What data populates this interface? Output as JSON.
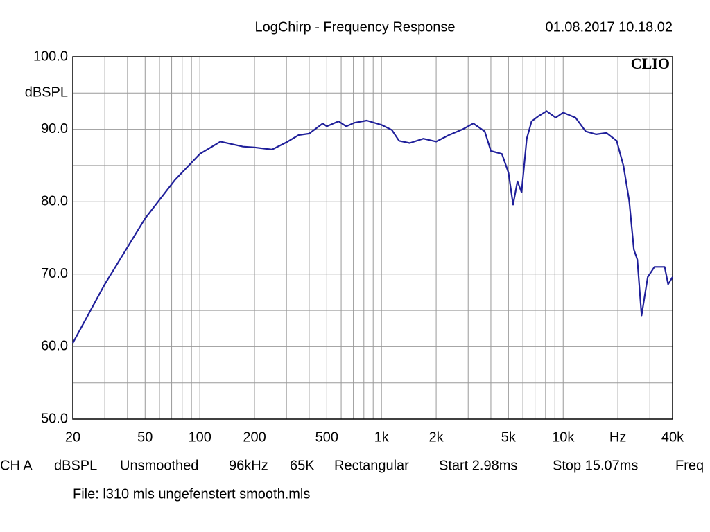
{
  "chart_data": {
    "type": "line",
    "title": "LogChirp - Frequency Response",
    "timestamp": "01.08.2017 10.18.02",
    "brand": "CLIO",
    "y_unit": "dBSPL",
    "log_x": true,
    "grid": true,
    "xlim": [
      20,
      40000
    ],
    "ylim": [
      50,
      100
    ],
    "xticks": [
      20,
      50,
      100,
      200,
      500,
      {
        "value": 1000,
        "label": "1k"
      },
      {
        "value": 2000,
        "label": "2k"
      },
      {
        "value": 5000,
        "label": "5k"
      },
      {
        "value": 10000,
        "label": "10k"
      },
      {
        "value": 20000,
        "label": "Hz"
      },
      {
        "value": 40000,
        "label": "40k"
      }
    ],
    "minor_xticks": [
      30,
      40,
      60,
      70,
      80,
      90,
      300,
      400,
      600,
      700,
      800,
      900,
      3000,
      4000,
      6000,
      7000,
      8000,
      9000,
      30000
    ],
    "yticks": [
      {
        "value": 50,
        "label": "50.0"
      },
      {
        "value": 60,
        "label": "60.0"
      },
      {
        "value": 70,
        "label": "70.0"
      },
      {
        "value": 80,
        "label": "80.0"
      },
      {
        "value": 90,
        "label": "90.0"
      },
      {
        "value": 100,
        "label": "100.0"
      }
    ],
    "minor_yticks": [
      55,
      65,
      75,
      85,
      95
    ],
    "x": [
      20,
      30,
      50,
      73,
      100,
      130,
      173,
      200,
      250,
      300,
      350,
      400,
      475,
      500,
      580,
      640,
      710,
      830,
      1000,
      1140,
      1250,
      1430,
      1700,
      2000,
      2350,
      2800,
      3200,
      3700,
      4000,
      4600,
      5000,
      5300,
      5600,
      5900,
      6300,
      6700,
      7300,
      8100,
      9100,
      10000,
      11700,
      13300,
      15200,
      17300,
      19700,
      21500,
      23100,
      24500,
      25600,
      27000,
      29200,
      31800,
      36200,
      37800,
      40000
    ],
    "series": [
      {
        "color": "#1f1f9a",
        "values": [
          60.5,
          68.6,
          77.7,
          83.0,
          86.6,
          88.3,
          87.6,
          87.5,
          87.2,
          88.2,
          89.2,
          89.4,
          90.8,
          90.4,
          91.1,
          90.4,
          90.9,
          91.2,
          90.6,
          89.9,
          88.4,
          88.1,
          88.7,
          88.3,
          89.2,
          90.0,
          90.8,
          89.7,
          87.0,
          86.6,
          84.0,
          79.6,
          82.8,
          81.3,
          88.7,
          91.1,
          91.8,
          92.5,
          91.6,
          92.3,
          91.6,
          89.7,
          89.3,
          89.5,
          88.4,
          84.9,
          80.1,
          73.4,
          72.0,
          64.3,
          69.6,
          71.0,
          71.0,
          68.6,
          69.6
        ]
      }
    ],
    "info": [
      "CH A",
      "dBSPL",
      "Unsmoothed",
      "96kHz",
      "65K",
      "Rectangular",
      "Start 2.98ms",
      "Stop 15.07ms",
      "Freq"
    ],
    "file": "File: l310 mls ungefenstert smooth.mls"
  }
}
